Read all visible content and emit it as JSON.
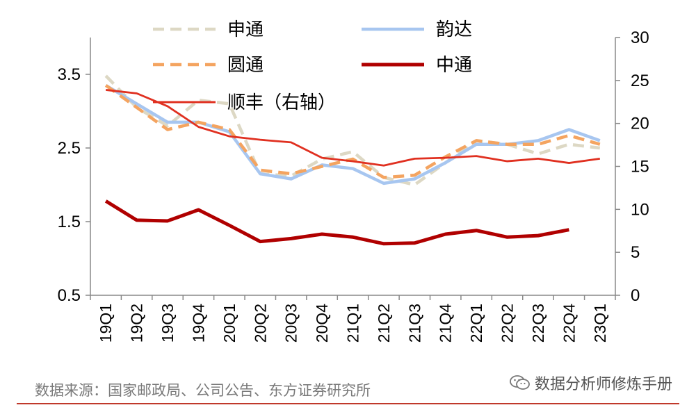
{
  "chart_data": {
    "type": "line",
    "categories": [
      "19Q1",
      "19Q2",
      "19Q3",
      "19Q4",
      "20Q1",
      "20Q2",
      "20Q3",
      "20Q4",
      "21Q1",
      "21Q2",
      "21Q3",
      "21Q4",
      "22Q1",
      "22Q2",
      "22Q3",
      "22Q4",
      "23Q1"
    ],
    "left_axis": {
      "ylim": [
        0.5,
        4.0
      ],
      "ticks": [
        "3.5",
        "2.5",
        "1.5",
        "0.5"
      ],
      "tick_values": [
        3.5,
        2.5,
        1.5,
        0.5
      ]
    },
    "right_axis": {
      "ylim": [
        0,
        30
      ],
      "ticks": [
        "30",
        "25",
        "20",
        "15",
        "10",
        "5",
        "0"
      ],
      "tick_values": [
        30,
        25,
        20,
        15,
        10,
        5,
        0
      ]
    },
    "series": [
      {
        "name": "申通",
        "axis": "left",
        "color": "#ddd8c4",
        "dash": "dashed",
        "values": [
          3.48,
          3.05,
          2.8,
          3.15,
          3.1,
          2.15,
          2.12,
          2.35,
          2.45,
          2.1,
          2.0,
          2.3,
          2.6,
          2.55,
          2.42,
          2.55,
          2.5
        ]
      },
      {
        "name": "韵达",
        "axis": "left",
        "color": "#a7c6f0",
        "dash": "solid",
        "values": [
          3.35,
          3.1,
          2.85,
          2.85,
          2.72,
          2.15,
          2.08,
          2.27,
          2.22,
          2.02,
          2.08,
          2.3,
          2.55,
          2.55,
          2.6,
          2.75,
          2.6
        ]
      },
      {
        "name": "圆通",
        "axis": "left",
        "color": "#f4a460",
        "dash": "dashed",
        "values": [
          3.35,
          3.05,
          2.75,
          2.85,
          2.75,
          2.2,
          2.15,
          2.25,
          2.35,
          2.1,
          2.13,
          2.38,
          2.6,
          2.55,
          2.55,
          2.67,
          2.55
        ]
      },
      {
        "name": "中通",
        "axis": "left",
        "color": "#b00000",
        "dash": "solid",
        "values": [
          1.78,
          1.52,
          1.51,
          1.66,
          1.45,
          1.23,
          1.27,
          1.33,
          1.29,
          1.2,
          1.21,
          1.33,
          1.38,
          1.29,
          1.31,
          1.39,
          null
        ]
      },
      {
        "name": "顺丰（右轴）",
        "axis": "right",
        "color": "#e03020",
        "dash": "solid",
        "values": [
          23.9,
          23.5,
          22.0,
          19.6,
          18.5,
          18.1,
          17.8,
          16.0,
          15.6,
          15.1,
          15.9,
          16.0,
          16.2,
          15.6,
          15.9,
          15.4,
          15.9
        ]
      }
    ],
    "legend_placement": "top",
    "grid": false
  },
  "source": "数据来源：国家邮政局、公司公告、东方证券研究所",
  "watermark": "数据分析师修炼手册"
}
